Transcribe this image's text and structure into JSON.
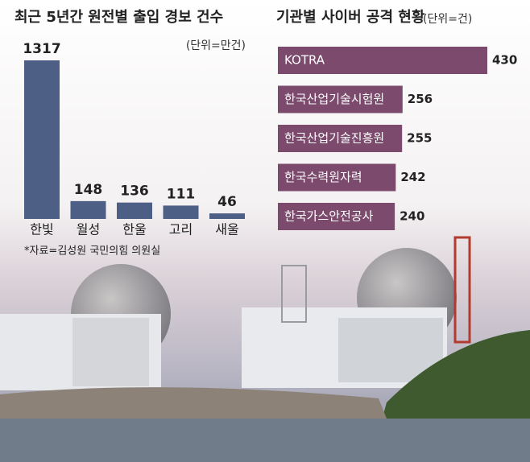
{
  "chart_data": [
    {
      "type": "bar",
      "title": "최근 5년간 원전별 출입 경보 건수",
      "subtitle": "(단위=만건)",
      "categories": [
        "한빛",
        "월성",
        "한울",
        "고리",
        "새울"
      ],
      "values": [
        1317,
        148,
        136,
        111,
        46
      ],
      "color": "#4e5f85",
      "source": "*자료=김성원 국민의힘 의원실"
    },
    {
      "type": "hbar",
      "title": "기관별 사이버 공격 현황",
      "subtitle": "(단위=건)",
      "categories": [
        "KOTRA",
        "한국산업기술시험원",
        "한국산업기술진흥원",
        "한국수력원자력",
        "한국가스안전공사"
      ],
      "values": [
        430,
        256,
        255,
        242,
        240
      ],
      "color": "#7b4a6c"
    }
  ]
}
